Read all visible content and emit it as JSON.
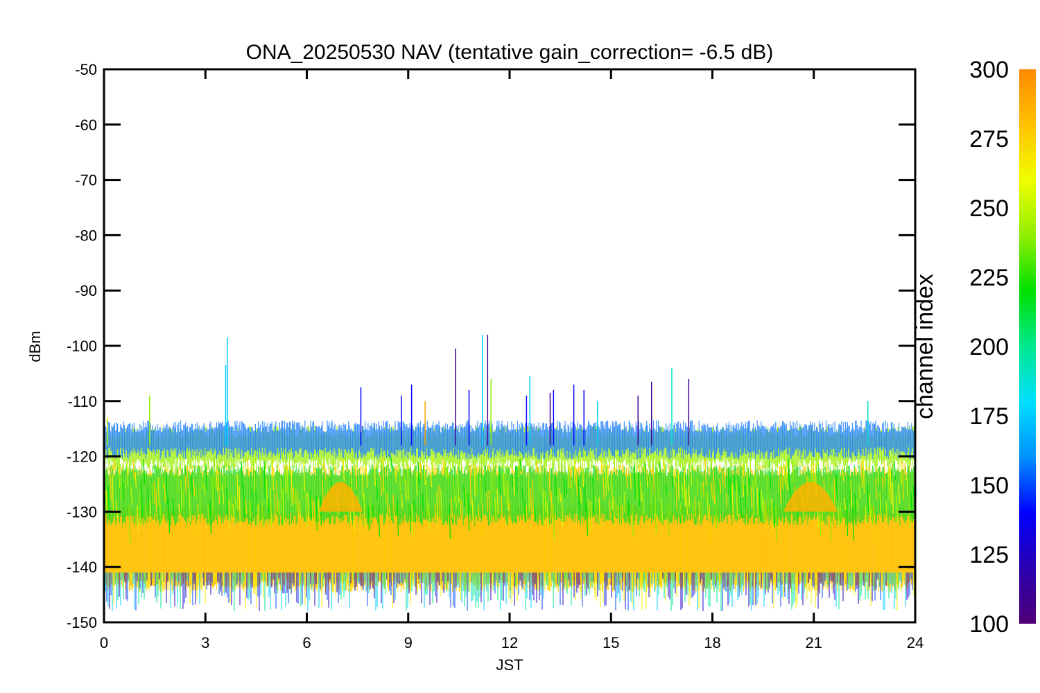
{
  "chart_data": {
    "type": "scatter",
    "title": "ONA_20250530 NAV (tentative gain_correction= -6.5 dB)",
    "xlabel": "JST",
    "ylabel": "dBm",
    "xlim": [
      0,
      24
    ],
    "ylim": [
      -150,
      -50
    ],
    "xticks": [
      "0",
      "3",
      "6",
      "9",
      "12",
      "15",
      "18",
      "21",
      "24"
    ],
    "yticks": [
      "-50",
      "-60",
      "-70",
      "-80",
      "-90",
      "-100",
      "-110",
      "-120",
      "-130",
      "-140",
      "-150"
    ],
    "grid": false,
    "colorbar": {
      "label": "channel index",
      "range": [
        100,
        300
      ],
      "ticks": [
        "300",
        "275",
        "250",
        "225",
        "200",
        "175",
        "150",
        "125",
        "100"
      ],
      "colormap": [
        "#500078",
        "#2a00b0",
        "#0000ff",
        "#0090ff",
        "#00e0ff",
        "#00e890",
        "#00e000",
        "#90ee00",
        "#f0ff00",
        "#ffc000",
        "#ff8a00"
      ]
    },
    "bands": [
      {
        "channel": 290,
        "y_min": -142,
        "y_max": -130,
        "color": "#ff8a00"
      },
      {
        "channel": 265,
        "y_min": -143,
        "y_max": -123,
        "color": "#ffd000"
      },
      {
        "channel": 240,
        "y_min": -131,
        "y_max": -123,
        "color": "#22dd22"
      },
      {
        "channel": 250,
        "y_min": -121,
        "y_max": -116,
        "color": "#99ee00"
      },
      {
        "channel": 150,
        "y_min": -119,
        "y_max": -115,
        "color": "#2080ff"
      }
    ],
    "spikes": [
      {
        "x": 0.1,
        "y_top": -113,
        "channel": 250
      },
      {
        "x": 1.35,
        "y_top": -109,
        "channel": 240
      },
      {
        "x": 3.65,
        "y_top": -98.5,
        "channel": 175
      },
      {
        "x": 3.6,
        "y_top": -103.5,
        "channel": 175
      },
      {
        "x": 7.6,
        "y_top": -107.5,
        "channel": 140
      },
      {
        "x": 8.8,
        "y_top": -109,
        "channel": 140
      },
      {
        "x": 9.1,
        "y_top": -107,
        "channel": 140
      },
      {
        "x": 9.5,
        "y_top": -110,
        "channel": 290
      },
      {
        "x": 10.4,
        "y_top": -100.5,
        "channel": 110
      },
      {
        "x": 10.8,
        "y_top": -108,
        "channel": 140
      },
      {
        "x": 11.2,
        "y_top": -98,
        "channel": 175
      },
      {
        "x": 11.35,
        "y_top": -98,
        "channel": 110
      },
      {
        "x": 11.45,
        "y_top": -106,
        "channel": 240
      },
      {
        "x": 12.6,
        "y_top": -105.5,
        "channel": 175
      },
      {
        "x": 12.5,
        "y_top": -109,
        "channel": 140
      },
      {
        "x": 13.2,
        "y_top": -108.5,
        "channel": 110
      },
      {
        "x": 13.3,
        "y_top": -108,
        "channel": 140
      },
      {
        "x": 13.9,
        "y_top": -107,
        "channel": 140
      },
      {
        "x": 14.2,
        "y_top": -108,
        "channel": 140
      },
      {
        "x": 14.6,
        "y_top": -110,
        "channel": 175
      },
      {
        "x": 15.8,
        "y_top": -109,
        "channel": 110
      },
      {
        "x": 16.2,
        "y_top": -106.5,
        "channel": 110
      },
      {
        "x": 16.8,
        "y_top": -104,
        "channel": 190
      },
      {
        "x": 17.3,
        "y_top": -106,
        "channel": 110
      },
      {
        "x": 22.6,
        "y_top": -110,
        "channel": 190
      }
    ],
    "humps": [
      {
        "x_center": 7.0,
        "width": 1.3,
        "y_top": -121,
        "channel": 285
      },
      {
        "x_center": 20.9,
        "width": 1.6,
        "y_top": -121,
        "channel": 285
      }
    ]
  }
}
